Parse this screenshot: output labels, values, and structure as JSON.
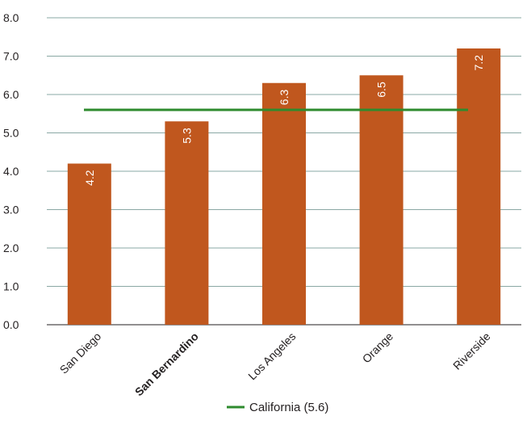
{
  "chart_data": {
    "type": "bar",
    "categories": [
      "San Diego",
      "San Bernardino",
      "Los Angeles",
      "Orange",
      "Riverside"
    ],
    "highlight_category": "San Bernardino",
    "values": [
      4.2,
      5.3,
      6.3,
      6.5,
      7.2
    ],
    "data_labels": [
      "4.2",
      "5.3",
      "6.3",
      "6.5",
      "7.2"
    ],
    "y_ticks": [
      "0.0",
      "1.0",
      "2.0",
      "3.0",
      "4.0",
      "5.0",
      "6.0",
      "7.0",
      "8.0"
    ],
    "ylim": [
      0,
      8
    ],
    "grid": true,
    "reference_line": {
      "label": "California (5.6)",
      "value": 5.6
    },
    "legend_position": "bottom-center",
    "colors": {
      "bar": "#c0571e",
      "reference": "#2e8b2e",
      "grid": "#8aa8a4",
      "axis": "#231f20"
    }
  }
}
